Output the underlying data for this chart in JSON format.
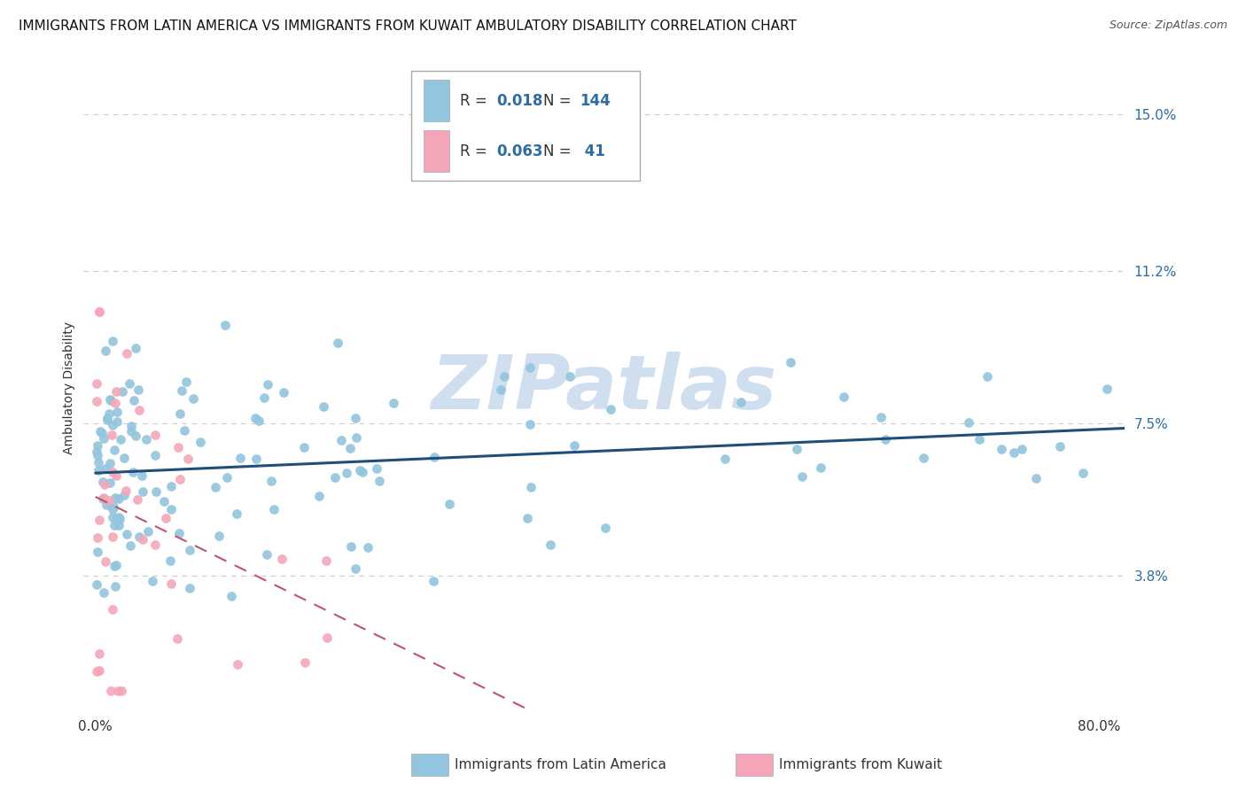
{
  "title": "IMMIGRANTS FROM LATIN AMERICA VS IMMIGRANTS FROM KUWAIT AMBULATORY DISABILITY CORRELATION CHART",
  "source": "Source: ZipAtlas.com",
  "ylabel": "Ambulatory Disability",
  "ytick_vals": [
    0.038,
    0.075,
    0.112,
    0.15
  ],
  "ytick_labels": [
    "3.8%",
    "7.5%",
    "11.2%",
    "15.0%"
  ],
  "xlim": [
    0.0,
    0.82
  ],
  "ylim": [
    0.005,
    0.162
  ],
  "latin_america_R": 0.018,
  "latin_america_N": 144,
  "kuwait_R": 0.063,
  "kuwait_N": 41,
  "blue_color": "#92C5DE",
  "pink_color": "#F4A6B8",
  "trend_blue_color": "#1F4E79",
  "trend_pink_color": "#C0536A",
  "text_color": "#2E6DA4",
  "label_color": "#333333",
  "grid_color": "#CCCCCC",
  "watermark_color": "#D0DFF0",
  "background_color": "#ffffff",
  "title_fontsize": 11,
  "source_fontsize": 9,
  "ytick_fontsize": 11,
  "ylabel_fontsize": 10
}
